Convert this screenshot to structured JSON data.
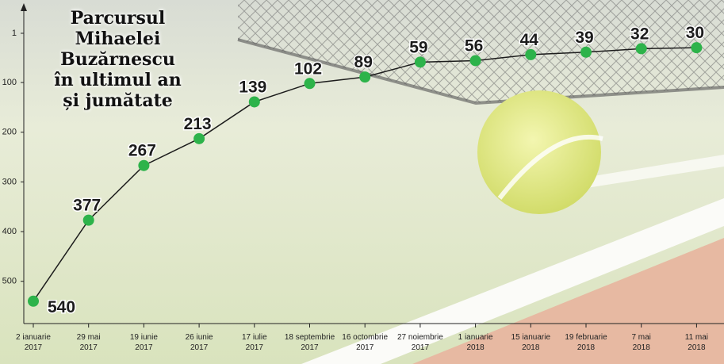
{
  "chart_data": {
    "type": "line",
    "title": "Parcursul\nMihaelei\nBuzărnescu\nîn ultimul an\nși jumătate",
    "categories": [
      "2 ianuarie\n2017",
      "29 mai\n2017",
      "19 iunie\n2017",
      "26 iunie\n2017",
      "17 iulie\n2017",
      "18 septembrie\n2017",
      "16 octombrie\n2017",
      "27 noiembrie\n2017",
      "1 ianuarie\n2018",
      "15 ianuarie\n2018",
      "19 februarie\n2018",
      "7 mai\n2018",
      "11 mai\n2018"
    ],
    "values": [
      540,
      377,
      267,
      213,
      139,
      102,
      89,
      59,
      56,
      44,
      39,
      32,
      30
    ],
    "color": "#2db34a",
    "line_color": "#1c1c1c",
    "ylim": [
      585,
      -58
    ],
    "yticks": [
      1,
      100,
      200,
      300,
      400,
      500
    ]
  }
}
